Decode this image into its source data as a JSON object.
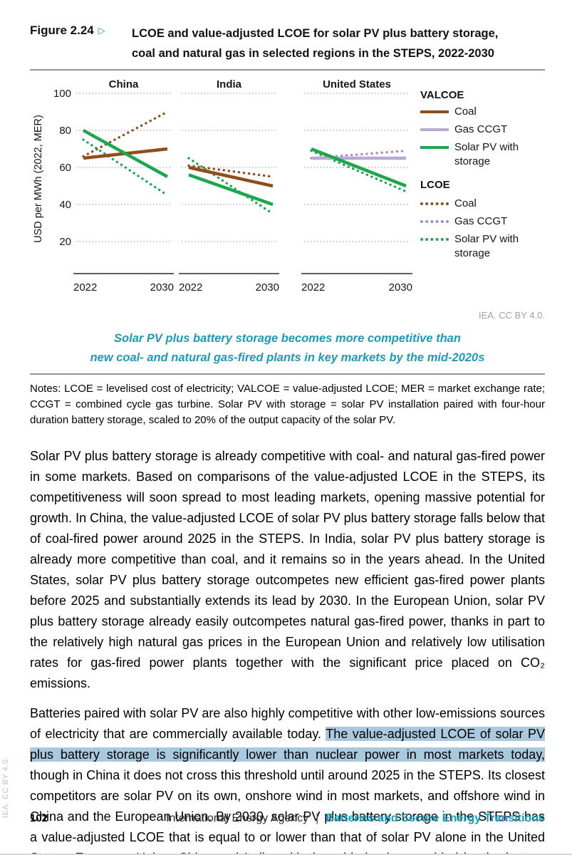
{
  "page": {
    "side_attribution": "IEA. CC BY 4.0.",
    "footer": {
      "page_number": "102",
      "org": "International Energy Agency",
      "separator": "|",
      "book_title": "Batteries and Secure Energy Transitions"
    }
  },
  "figure": {
    "label": "Figure 2.24",
    "marker": "▷",
    "title_line1": "LCOE and value-adjusted LCOE for solar PV plus battery storage,",
    "title_line2": "coal and natural gas in selected regions in the STEPS, 2022-2030",
    "attribution": "IEA. CC BY 4.0.",
    "subtitle_line1": "Solar PV plus battery storage becomes more competitive than",
    "subtitle_line2": "new coal- and natural gas-fired plants in key markets by the mid-2020s",
    "notes": "Notes: LCOE = levelised cost of electricity; VALCOE = value-adjusted LCOE; MER = market exchange rate; CCGT = combined cycle gas turbine. Solar PV with storage = solar PV installation paired with four-hour duration battery storage, scaled to 20% of the output capacity of the solar PV."
  },
  "chart_data": {
    "type": "line",
    "ylabel": "USD per MWh (2022, MER)",
    "yticks": [
      20,
      40,
      60,
      80,
      100
    ],
    "ylim": [
      0,
      105
    ],
    "x": [
      2022,
      2030
    ],
    "x_tick_labels": [
      "2022",
      "2030"
    ],
    "grid": "dotted-horizontal",
    "legend_position": "right",
    "panels": [
      {
        "title": "China",
        "series": [
          {
            "group": "LCOE",
            "name": "Coal",
            "values": [
              66,
              90
            ]
          },
          {
            "group": "LCOE",
            "name": "Solar PV with storage",
            "values": [
              75,
              45
            ]
          },
          {
            "group": "VALCOE",
            "name": "Coal",
            "values": [
              65,
              70
            ]
          },
          {
            "group": "VALCOE",
            "name": "Solar PV with storage",
            "values": [
              80,
              55
            ]
          }
        ]
      },
      {
        "title": "India",
        "series": [
          {
            "group": "LCOE",
            "name": "Coal",
            "values": [
              61,
              55
            ]
          },
          {
            "group": "LCOE",
            "name": "Solar PV with storage",
            "values": [
              65,
              35
            ]
          },
          {
            "group": "VALCOE",
            "name": "Coal",
            "values": [
              60,
              50
            ]
          },
          {
            "group": "VALCOE",
            "name": "Solar PV with storage",
            "values": [
              56,
              40
            ]
          }
        ]
      },
      {
        "title": "United States",
        "series": [
          {
            "group": "LCOE",
            "name": "Gas CCGT",
            "values": [
              65,
              69
            ]
          },
          {
            "group": "LCOE",
            "name": "Solar PV with storage",
            "values": [
              69,
              47
            ]
          },
          {
            "group": "VALCOE",
            "name": "Gas CCGT",
            "values": [
              65,
              65
            ]
          },
          {
            "group": "VALCOE",
            "name": "Solar PV with storage",
            "values": [
              70,
              50
            ]
          }
        ]
      }
    ],
    "legend": {
      "groups": [
        {
          "label": "VALCOE",
          "style": "solid",
          "items": [
            "Coal",
            "Gas CCGT",
            "Solar PV with storage"
          ]
        },
        {
          "label": "LCOE",
          "style": "dotted",
          "items": [
            "Coal",
            "Gas CCGT",
            "Solar PV with storage"
          ]
        }
      ]
    },
    "colors": {
      "VALCOE": {
        "Coal": "#8e4d1a",
        "Gas CCGT": "#b7a9d3",
        "Solar PV with storage": "#1ca74d"
      },
      "LCOE": {
        "Coal": "#8e4d1a",
        "Gas CCGT": "#a38cc5",
        "Solar PV with storage": "#1ca74d"
      }
    },
    "accent_teal": "#1e9ab9",
    "highlight_color": "#a9cade"
  },
  "body": {
    "para1": "Solar PV plus battery storage is already competitive with coal- and natural gas-fired power in some markets. Based on comparisons of the value-adjusted LCOE in the STEPS, its competitiveness will soon spread to most leading markets, opening massive potential for growth. In China, the value-adjusted LCOE of solar PV plus battery storage falls below that of coal-fired power around 2025 in the STEPS. In India, solar PV plus battery storage is already more competitive than coal, and it remains so in the years ahead. In the United States, solar PV plus battery storage outcompetes new efficient gas-fired power plants before 2025 and substantially extends its lead by 2030. In the European Union, solar PV plus battery storage already easily outcompetes natural gas-fired power, thanks in part to the relatively high natural gas prices in the European Union and relatively low utilisation rates for gas-fired power plants together with the significant price placed on CO₂ emissions.",
    "para2_pre": "Batteries paired with solar PV are also highly competitive with other low-emissions sources of electricity that are commercially available today. ",
    "para2_highlight": "The value-adjusted LCOE of solar PV plus battery storage is significantly lower than nuclear power in most markets today,",
    "para2_post": " though in China it does not cross this threshold until around 2025 in the STEPS. Its closest competitors are solar PV on its own, onshore wind in most markets, and offshore wind in China and the European Union. By 2030, solar PV plus battery storage in the STEPS has a value-adjusted LCOE that is equal to or lower than that of solar PV alone in the United States, European Union, China and India, with the added value provided by the battery fully compensating for"
  }
}
